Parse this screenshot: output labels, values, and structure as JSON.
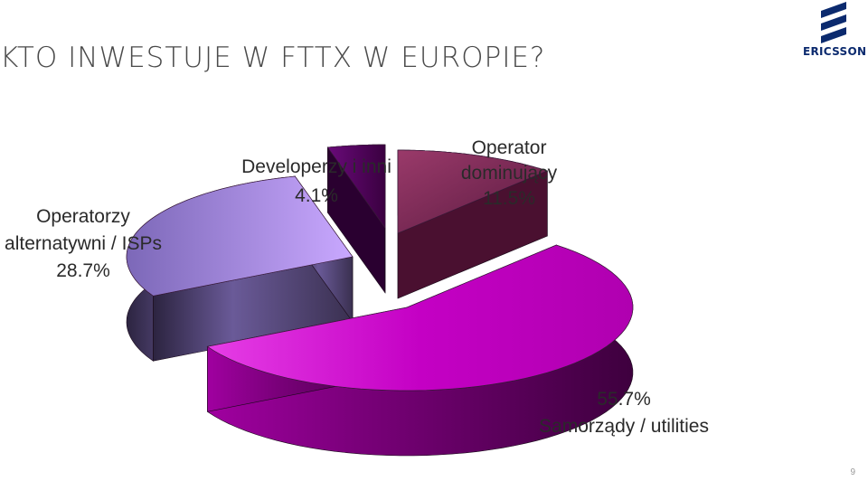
{
  "slide": {
    "title": "KTO INWESTUJE W FTTX W EUROPIE?",
    "page_number": "9",
    "logo_text": "ERICSSON",
    "logo_color": "#0b2a6e"
  },
  "chart_data": {
    "type": "pie",
    "style": "3d-exploded",
    "slices": [
      {
        "name_lines": [
          "Operator",
          "dominujący"
        ],
        "value": 11.5,
        "label": "11.5%",
        "color": "#7a2a55"
      },
      {
        "name_lines": [
          "Samorządy / utilities"
        ],
        "value": 55.7,
        "label": "55.7%",
        "color": "#c400c4"
      },
      {
        "name_lines": [
          "Operatorzy",
          "alternatywni / ISPs"
        ],
        "value": 28.7,
        "label": "28.7%",
        "color": "#a98be6"
      },
      {
        "name_lines": [
          "Developerzy i inni"
        ],
        "value": 4.1,
        "label": "4.1%",
        "color": "#5a0a66"
      }
    ]
  }
}
